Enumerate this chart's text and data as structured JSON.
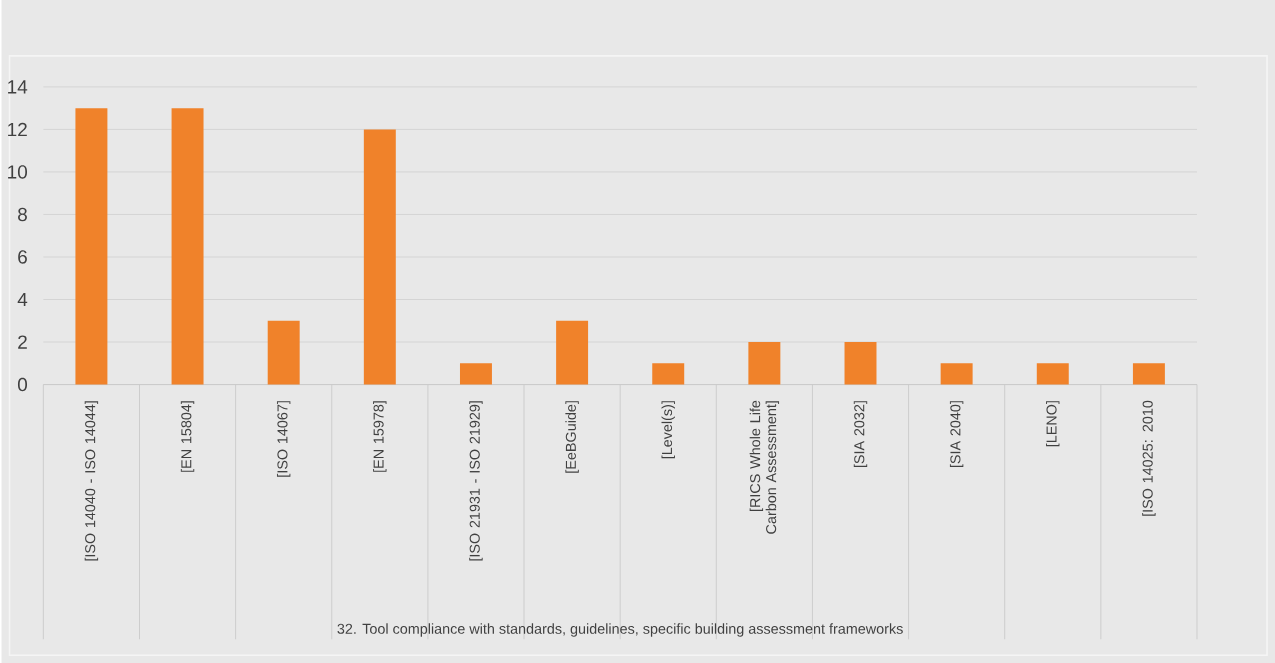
{
  "chart_data": {
    "type": "bar",
    "xlabel": "32. Tool compliance with standards, guidelines, specific building assessment frameworks",
    "categories": [
      "[ISO 14040 - ISO 14044]",
      "[EN 15804]",
      "[ISO 14067]",
      "[EN 15978]",
      "[ISO 21931 - ISO 21929]",
      "[EeBGuide]",
      "[Level(s)]",
      "[RICS Whole Life Carbon Assessment]",
      "[SIA 2032]",
      "[SIA 2040]",
      "[LENO]",
      "[ISO 14025: 2010"
    ],
    "values": [
      13,
      13,
      3,
      12,
      1,
      3,
      1,
      2,
      2,
      1,
      1,
      1
    ],
    "color": "#f0822a",
    "ylim": [
      0,
      14
    ],
    "yticks": [
      0,
      2,
      4,
      6,
      8,
      10,
      12,
      14
    ],
    "grid": "y"
  }
}
